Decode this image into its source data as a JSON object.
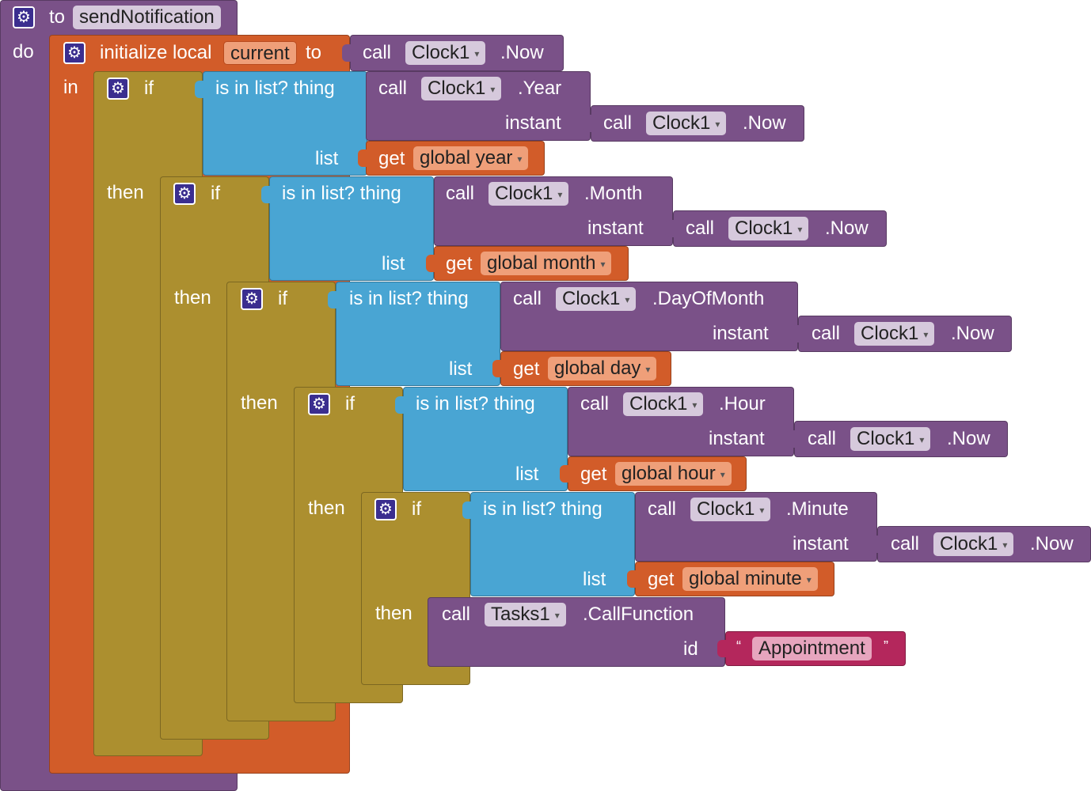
{
  "procedure": {
    "keyword_to": "to",
    "name": "sendNotification",
    "keyword_do": "do"
  },
  "local": {
    "keyword_init": "initialize local",
    "var_name": "current",
    "keyword_to": "to",
    "keyword_in": "in"
  },
  "keywords": {
    "call": "call",
    "if": "if",
    "then": "then",
    "is_in_list": "is in list? thing",
    "list": "list",
    "instant": "instant",
    "get": "get",
    "id": "id",
    "quote_open": "“",
    "quote_close": "”"
  },
  "components": {
    "clock": "Clock1",
    "tasks": "Tasks1"
  },
  "methods": {
    "now": ".Now",
    "year": ".Year",
    "month": ".Month",
    "day": ".DayOfMonth",
    "hour": ".Hour",
    "minute": ".Minute",
    "call_function": ".CallFunction"
  },
  "globals": {
    "year": "global year",
    "month": "global month",
    "day": "global day",
    "hour": "global hour",
    "minute": "global minute"
  },
  "text_value": "Appointment",
  "dropdown_arrow": "▾",
  "icons": {
    "mutator": "gear-icon"
  },
  "colors": {
    "procedure": "#7a5188",
    "local": "#d25c29",
    "control": "#ac8f2f",
    "list": "#49a5d3",
    "component": "#7a5188",
    "text": "#b4275c"
  }
}
